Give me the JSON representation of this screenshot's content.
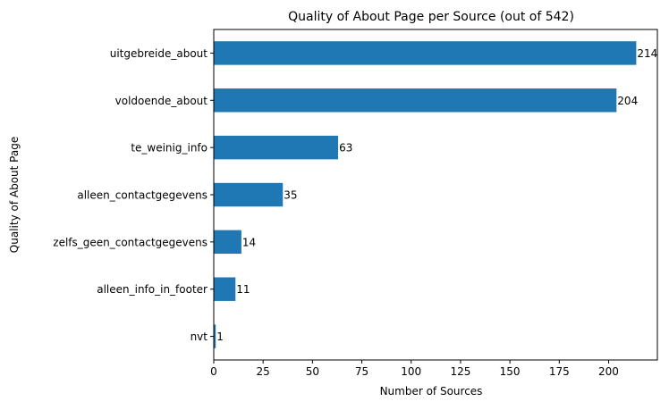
{
  "chart_data": {
    "type": "bar",
    "orientation": "horizontal",
    "title": "Quality of About Page per Source (out of 542)",
    "xlabel": "Number of Sources",
    "ylabel": "Quality of About Page",
    "categories": [
      "uitgebreide_about",
      "voldoende_about",
      "te_weinig_info",
      "alleen_contactgegevens",
      "zelfs_geen_contactgegevens",
      "alleen_info_in_footer",
      "nvt"
    ],
    "values": [
      214,
      204,
      63,
      35,
      14,
      11,
      1
    ],
    "data_labels": [
      "214",
      "204",
      "63",
      "35",
      "14",
      "11",
      "1"
    ],
    "xlim": [
      0,
      224.7
    ],
    "xticks": [
      0,
      25,
      50,
      75,
      100,
      125,
      150,
      175,
      200
    ],
    "xtick_labels": [
      "0",
      "25",
      "50",
      "75",
      "100",
      "125",
      "150",
      "175",
      "200"
    ],
    "grid": false,
    "legend": "none",
    "colors": {
      "bar": "#1f77b4",
      "axis": "#000000",
      "background": "#ffffff"
    }
  }
}
